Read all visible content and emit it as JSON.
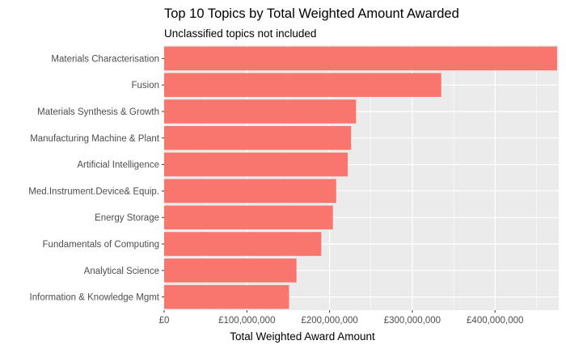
{
  "chart_data": {
    "type": "bar",
    "orientation": "horizontal",
    "title": "Top 10 Topics by Total Weighted Amount Awarded",
    "subtitle": "Unclassified topics not included",
    "xlabel": "Total Weighted Award Amount",
    "ylabel": "",
    "categories": [
      "Materials Characterisation",
      "Fusion",
      "Materials Synthesis & Growth",
      "Manufacturing Machine & Plant",
      "Artificial Intelligence",
      "Med.Instrument.Device& Equip.",
      "Energy Storage",
      "Fundamentals of Computing",
      "Analytical Science",
      "Information & Knowledge Mgmt"
    ],
    "values": [
      475000000,
      335000000,
      232000000,
      226000000,
      222000000,
      208000000,
      204000000,
      190000000,
      160000000,
      151000000
    ],
    "xlim": [
      0,
      477000000
    ],
    "xticks": [
      0,
      100000000,
      200000000,
      300000000,
      400000000
    ],
    "xtick_labels": [
      "£0",
      "£100,000,000",
      "£200,000,000",
      "£300,000,000",
      "£400,000,000"
    ],
    "bar_color": "#F8766D",
    "panel_color": "#EBEBEB",
    "grid": true,
    "legend": "none"
  }
}
